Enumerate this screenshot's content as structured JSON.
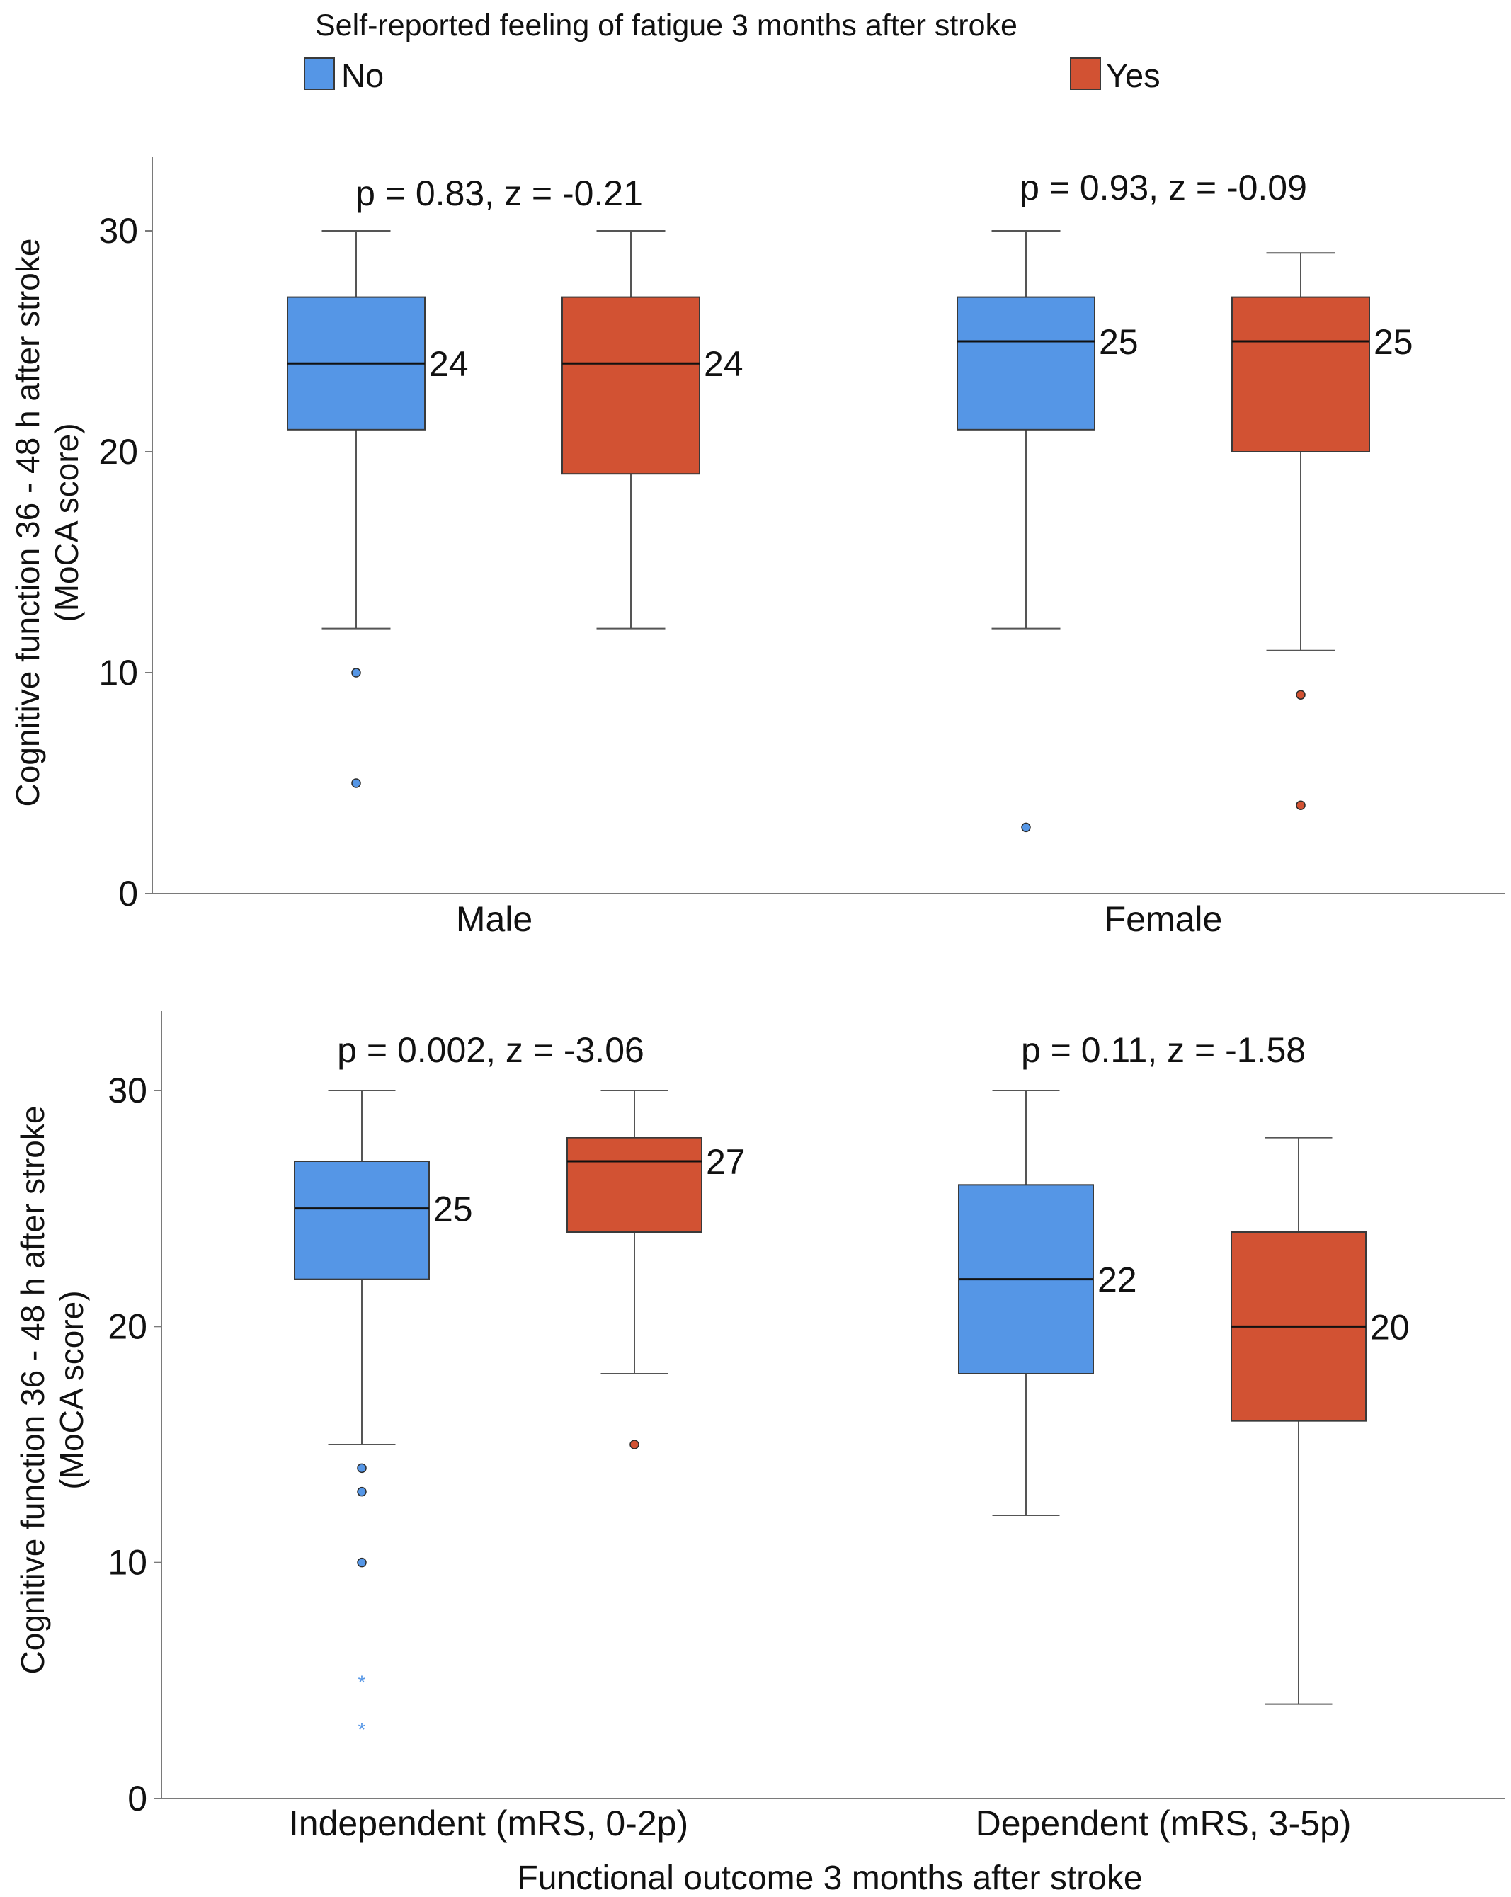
{
  "colors": {
    "no": "#5596e6",
    "yes": "#d25233",
    "axis": "#7a7a7a",
    "whisker": "#555555",
    "median": "#111111",
    "box_border": "#3a3a3a"
  },
  "legend": {
    "title": "Self-reported feeling of fatigue 3 months after stroke",
    "items": [
      {
        "label": "No",
        "color": "#5596e6"
      },
      {
        "label": "Yes",
        "color": "#d25233"
      }
    ]
  },
  "chart_data": [
    {
      "type": "box",
      "ylabel_line1": "Cognitive function 36 -  48 h after stroke",
      "ylabel_line2": "(MoCA score)",
      "xlabel": "",
      "ylim": [
        0,
        33
      ],
      "yticks": [
        0,
        10,
        20,
        30
      ],
      "categories": [
        {
          "name": "Male",
          "stat": "p = 0.83, z = -0.21",
          "boxes": [
            {
              "series": "No",
              "q1": 21,
              "median": 24,
              "q3": 27,
              "whisker_low": 12,
              "whisker_high": 30,
              "outliers": [
                10,
                5
              ],
              "extremes": [],
              "median_label": "24"
            },
            {
              "series": "Yes",
              "q1": 19,
              "median": 24,
              "q3": 27,
              "whisker_low": 12,
              "whisker_high": 30,
              "outliers": [],
              "extremes": [],
              "median_label": "24"
            }
          ]
        },
        {
          "name": "Female",
          "stat": "p = 0.93, z = -0.09",
          "boxes": [
            {
              "series": "No",
              "q1": 21,
              "median": 25,
              "q3": 27,
              "whisker_low": 12,
              "whisker_high": 30,
              "outliers": [
                3
              ],
              "extremes": [],
              "median_label": "25"
            },
            {
              "series": "Yes",
              "q1": 20,
              "median": 25,
              "q3": 27,
              "whisker_low": 11,
              "whisker_high": 29,
              "outliers": [
                9,
                4
              ],
              "extremes": [],
              "median_label": "25"
            }
          ]
        }
      ]
    },
    {
      "type": "box",
      "ylabel_line1": "Cognitive function 36 -  48 h after stroke",
      "ylabel_line2": "(MoCA score)",
      "xlabel": "Functional outcome 3 months after stroke",
      "ylim": [
        0,
        33
      ],
      "yticks": [
        0,
        10,
        20,
        30
      ],
      "categories": [
        {
          "name": "Independent (mRS, 0-2p)",
          "stat": "p = 0.002, z = -3.06",
          "boxes": [
            {
              "series": "No",
              "q1": 22,
              "median": 25,
              "q3": 27,
              "whisker_low": 15,
              "whisker_high": 30,
              "outliers": [
                14,
                13,
                10
              ],
              "extremes": [
                5,
                3
              ],
              "median_label": "25"
            },
            {
              "series": "Yes",
              "q1": 24,
              "median": 27,
              "q3": 28,
              "whisker_low": 18,
              "whisker_high": 30,
              "outliers": [
                15
              ],
              "extremes": [],
              "median_label": "27"
            }
          ]
        },
        {
          "name": "Dependent (mRS, 3-5p)",
          "stat": "p = 0.11, z = -1.58",
          "boxes": [
            {
              "series": "No",
              "q1": 18,
              "median": 22,
              "q3": 26,
              "whisker_low": 12,
              "whisker_high": 30,
              "outliers": [],
              "extremes": [],
              "median_label": "22"
            },
            {
              "series": "Yes",
              "q1": 16,
              "median": 20,
              "q3": 24,
              "whisker_low": 4,
              "whisker_high": 28,
              "outliers": [],
              "extremes": [],
              "median_label": "20"
            }
          ]
        }
      ]
    }
  ]
}
